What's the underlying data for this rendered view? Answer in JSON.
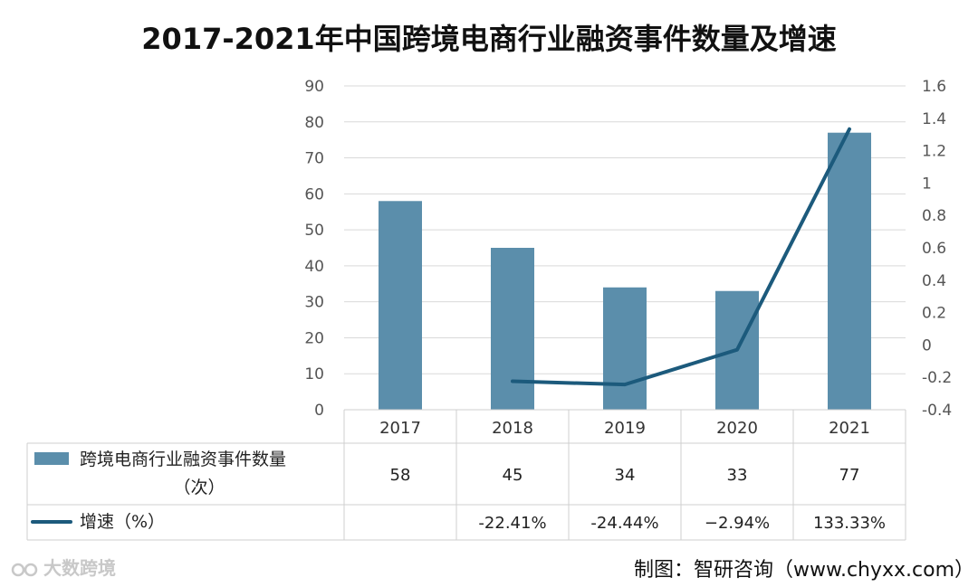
{
  "chart_data": {
    "type": "bar",
    "title": "2017-2021年中国跨境电商行业融资事件数量及增速",
    "categories": [
      "2017",
      "2018",
      "2019",
      "2020",
      "2021"
    ],
    "left_axis": {
      "ylim": [
        0,
        90
      ],
      "ticks": [
        "0",
        "10",
        "20",
        "30",
        "40",
        "50",
        "60",
        "70",
        "80",
        "90"
      ]
    },
    "right_axis": {
      "ylim": [
        -0.4,
        1.6
      ],
      "ticks": [
        "-0.4",
        "-0.2",
        "0",
        "0.2",
        "0.4",
        "0.6",
        "0.8",
        "1",
        "1.2",
        "1.4",
        "1.6"
      ]
    },
    "series": [
      {
        "name": "跨境电商行业融资事件数量",
        "name_unit": "（次）",
        "kind": "bar",
        "axis": "left",
        "color": "#5b8eab",
        "values": [
          58,
          45,
          34,
          33,
          77
        ],
        "labels": [
          "58",
          "45",
          "34",
          "33",
          "77"
        ]
      },
      {
        "name": "增速（%）",
        "kind": "line",
        "axis": "right",
        "color": "#1c5a7c",
        "values": [
          null,
          -0.2241,
          -0.2444,
          -0.0294,
          1.3333
        ],
        "labels": [
          "",
          "-22.41%",
          "-24.44%",
          "−2.94%",
          "133.33%"
        ]
      }
    ]
  },
  "watermark": "大数跨境",
  "source_note": "制图：智研咨询（www.chyxx.com）"
}
